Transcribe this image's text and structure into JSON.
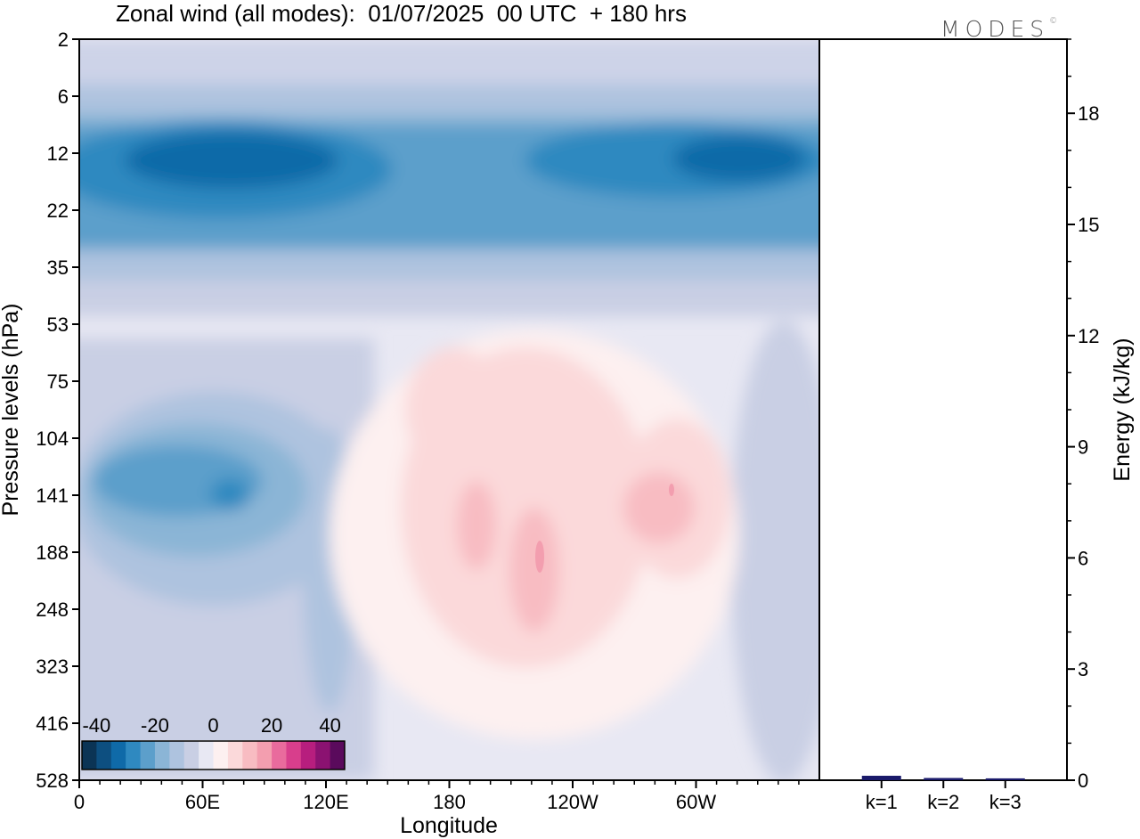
{
  "title": "Zonal wind (all modes):  01/07/2025  00 UTC  + 180 hrs",
  "logo": "MODES",
  "logo_mark": "©",
  "chart_data": [
    {
      "type": "heatmap",
      "xlabel": "Longitude",
      "ylabel": "Pressure levels (hPa)",
      "x_ticks": [
        {
          "lon": 0,
          "label": "0"
        },
        {
          "lon": 60,
          "label": "60E"
        },
        {
          "lon": 120,
          "label": "120E"
        },
        {
          "lon": 180,
          "label": "180"
        },
        {
          "lon": 240,
          "label": "120W"
        },
        {
          "lon": 300,
          "label": "60W"
        }
      ],
      "x_range": [
        0,
        360
      ],
      "y_levels": [
        "2",
        "6",
        "12",
        "22",
        "35",
        "53",
        "75",
        "104",
        "141",
        "188",
        "248",
        "323",
        "416",
        "528"
      ],
      "colorbar": {
        "tick_labels": [
          "-40",
          "-20",
          "0",
          "20",
          "40"
        ],
        "tick_values": [
          -40,
          -20,
          0,
          20,
          40
        ],
        "range": [
          -45,
          45
        ],
        "colors": [
          "#0b3455",
          "#0d4f80",
          "#0f6aa8",
          "#2f89c0",
          "#5c9fcb",
          "#8bb5d6",
          "#aec3df",
          "#c9cfe4",
          "#e8e8f3",
          "#fdf0f0",
          "#fbd9da",
          "#f8bcc2",
          "#f39eaf",
          "#e96b9d",
          "#d83e8c",
          "#b71e7e",
          "#8b1271",
          "#5a0a5c"
        ]
      }
    },
    {
      "type": "bar",
      "ylabel": "Energy (kJ/kg)",
      "categories": [
        "k=1",
        "k=2",
        "k=3"
      ],
      "values": [
        0.12,
        0.06,
        0.05
      ],
      "ylim": [
        0,
        20
      ],
      "y_ticks": [
        0,
        3,
        6,
        9,
        12,
        15,
        18
      ],
      "y_tick_labels": [
        "0",
        "3",
        "6",
        "9",
        "12",
        "15",
        "18"
      ],
      "bar_color": "#1a1a6a"
    }
  ]
}
